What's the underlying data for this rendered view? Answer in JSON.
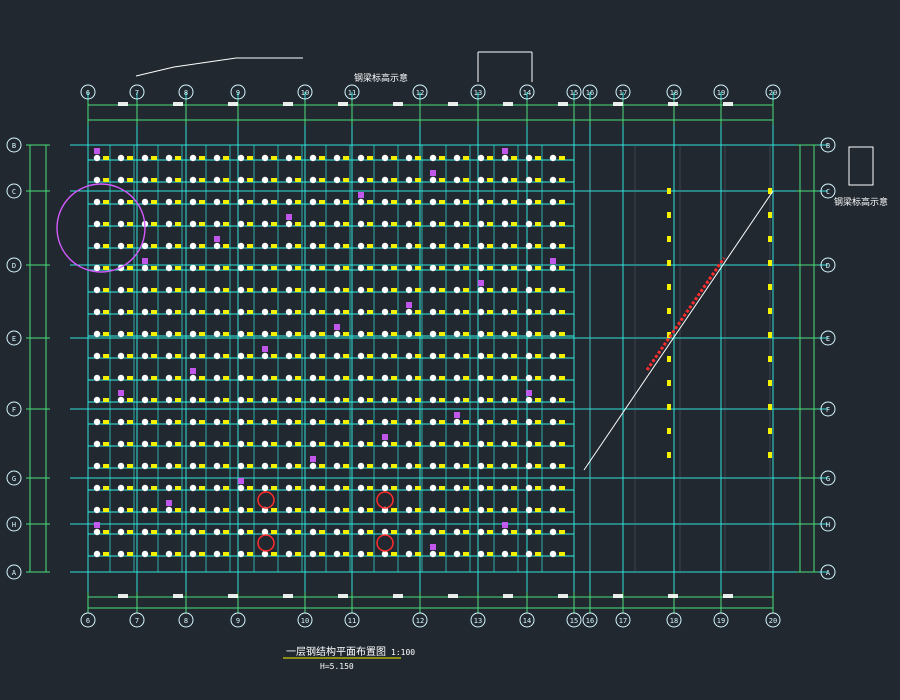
{
  "drawing": {
    "background": "#212830",
    "colors": {
      "grid": "#2fe2d8",
      "grid_dim": "#6a7a86",
      "dim_line": "#4be07a",
      "beam": "#2ff2e6",
      "bubble": "#d6f7ff",
      "member_white": "#ffffff",
      "member_yellow": "#f3f000",
      "accent_magenta": "#d35bff",
      "accent_red": "#ff2d2d",
      "diag_white": "#ffffff"
    },
    "axis_labels": {
      "top": [
        "6",
        "7",
        "8",
        "9",
        "10",
        "11",
        "12",
        "13",
        "14",
        "15",
        "16",
        "17",
        "18",
        "19",
        "20"
      ],
      "bottom": [
        "6",
        "7",
        "8",
        "9",
        "10",
        "11",
        "12",
        "13",
        "14",
        "15",
        "16",
        "17",
        "18",
        "19",
        "20"
      ],
      "left": [
        "B",
        "C",
        "D",
        "E",
        "F",
        "G",
        "H",
        "A"
      ],
      "right": [
        "B",
        "C",
        "D",
        "E",
        "F",
        "G",
        "H",
        "A"
      ]
    },
    "annotations": {
      "top_note": "钢梁标高示意",
      "right_note": "钢梁标高示意"
    },
    "title_block": {
      "title": "一层钢结构平面布置图",
      "scale": "1:100",
      "sub": "H=5.150"
    }
  }
}
